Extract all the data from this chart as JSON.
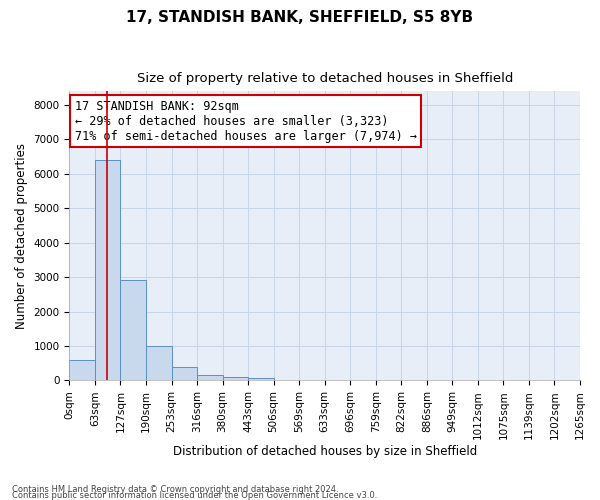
{
  "title": "17, STANDISH BANK, SHEFFIELD, S5 8YB",
  "subtitle": "Size of property relative to detached houses in Sheffield",
  "xlabel": "Distribution of detached houses by size in Sheffield",
  "ylabel": "Number of detached properties",
  "footer_line1": "Contains HM Land Registry data © Crown copyright and database right 2024.",
  "footer_line2": "Contains public sector information licensed under the Open Government Licence v3.0.",
  "bar_values": [
    600,
    6400,
    2900,
    1000,
    380,
    160,
    100,
    80,
    0,
    0,
    0,
    0,
    0,
    0,
    0,
    0,
    0,
    0,
    0,
    0
  ],
  "bin_labels": [
    "0sqm",
    "63sqm",
    "127sqm",
    "190sqm",
    "253sqm",
    "316sqm",
    "380sqm",
    "443sqm",
    "506sqm",
    "569sqm",
    "633sqm",
    "696sqm",
    "759sqm",
    "822sqm",
    "886sqm",
    "949sqm",
    "1012sqm",
    "1075sqm",
    "1139sqm",
    "1202sqm",
    "1265sqm"
  ],
  "bin_width": 63,
  "num_bins": 20,
  "property_size": 92,
  "ylim_max": 8400,
  "yticks": [
    0,
    1000,
    2000,
    3000,
    4000,
    5000,
    6000,
    7000,
    8000
  ],
  "bar_color": "#c8d9ee",
  "bar_edge_color": "#5b8fcc",
  "vline_color": "#cc0000",
  "annotation_line1": "17 STANDISH BANK: 92sqm",
  "annotation_line2": "← 29% of detached houses are smaller (3,323)",
  "annotation_line3": "71% of semi-detached houses are larger (7,974) →",
  "annotation_box_color": "#cc0000",
  "grid_color": "#c8d4e8",
  "background_color": "#e8eef8",
  "title_fontsize": 11,
  "subtitle_fontsize": 9.5,
  "axis_label_fontsize": 8.5,
  "tick_fontsize": 7.5,
  "annotation_fontsize": 8.5,
  "ylabel_fontsize": 8.5
}
